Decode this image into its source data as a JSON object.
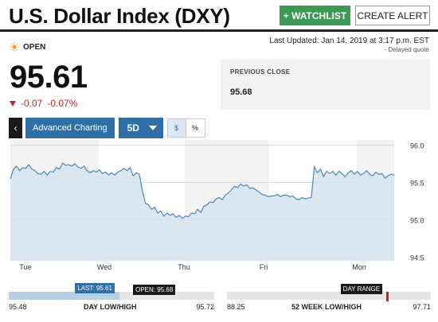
{
  "header": {
    "title": "U.S. Dollar Index (DXY)",
    "watchlist_label": "+ WATCHLIST",
    "alert_label": "CREATE ALERT"
  },
  "quote": {
    "status": "OPEN",
    "last_updated": "Last Updated: Jan 14, 2019 at 3:17 p.m. EST",
    "delayed": "- Delayed quote",
    "price": "95.61",
    "change": "-0.07",
    "change_pct": "-0.07%",
    "previous_close_label": "PREVIOUS CLOSE",
    "previous_close": "95.68"
  },
  "toolbar": {
    "back_label": "‹",
    "advanced_label": "Advanced Charting",
    "range_label": "5D",
    "dollar_label": "$",
    "percent_label": "%"
  },
  "chart_data": {
    "type": "area",
    "x_labels": [
      "Tue",
      "Wed",
      "Thu",
      "Fri",
      "Mon"
    ],
    "y_ticks": [
      "96.0",
      "95.5",
      "95.0",
      "94.5"
    ],
    "ylim": [
      94.45,
      96.05
    ],
    "y_values": [
      95.55,
      95.68,
      95.72,
      95.66,
      95.7,
      95.69,
      95.74,
      95.68,
      95.66,
      95.62,
      95.61,
      95.65,
      95.6,
      95.65,
      95.64,
      95.7,
      95.68,
      95.76,
      95.73,
      95.74,
      95.72,
      95.75,
      95.71,
      95.69,
      95.72,
      95.66,
      95.63,
      95.66,
      95.64,
      95.67,
      95.62,
      95.64,
      95.6,
      95.63,
      95.6,
      95.64,
      95.66,
      95.69,
      95.66,
      95.7,
      95.59,
      95.63,
      95.61,
      95.39,
      95.22,
      95.2,
      95.14,
      95.17,
      95.09,
      95.12,
      95.05,
      95.09,
      95.06,
      95.08,
      95.03,
      95.06,
      95.02,
      95.05,
      95.04,
      95.09,
      95.08,
      95.14,
      95.1,
      95.18,
      95.2,
      95.24,
      95.23,
      95.28,
      95.3,
      95.27,
      95.33,
      95.36,
      95.4,
      95.45,
      95.43,
      95.48,
      95.45,
      95.47,
      95.42,
      95.43,
      95.4,
      95.37,
      95.34,
      95.33,
      95.31,
      95.32,
      95.32,
      95.34,
      95.31,
      95.33,
      95.33,
      95.31,
      95.32,
      95.28,
      95.27,
      95.3,
      95.28,
      95.29,
      95.3,
      95.71,
      95.63,
      95.68,
      95.58,
      95.65,
      95.62,
      95.65,
      95.6,
      95.65,
      95.62,
      95.58,
      95.63,
      95.66,
      95.61,
      95.65,
      95.6,
      95.62,
      95.66,
      95.61,
      95.59,
      95.64,
      95.61,
      95.62,
      95.56,
      95.59,
      95.61,
      95.6
    ],
    "grid": "horizontal",
    "shaded_periods": 3
  },
  "day_range": {
    "low": "95.48",
    "high": "95.72",
    "label": "DAY LOW/HIGH",
    "last_tag": "LAST: 95.61",
    "open_tag": "OPEN: 95.68",
    "last_fraction": 0.54,
    "open_fraction": 0.83
  },
  "week52_range": {
    "low": "88.25",
    "high": "97.71",
    "label": "52 WEEK LOW/HIGH",
    "tag": "DAY RANGE",
    "day_fraction": 0.78
  }
}
